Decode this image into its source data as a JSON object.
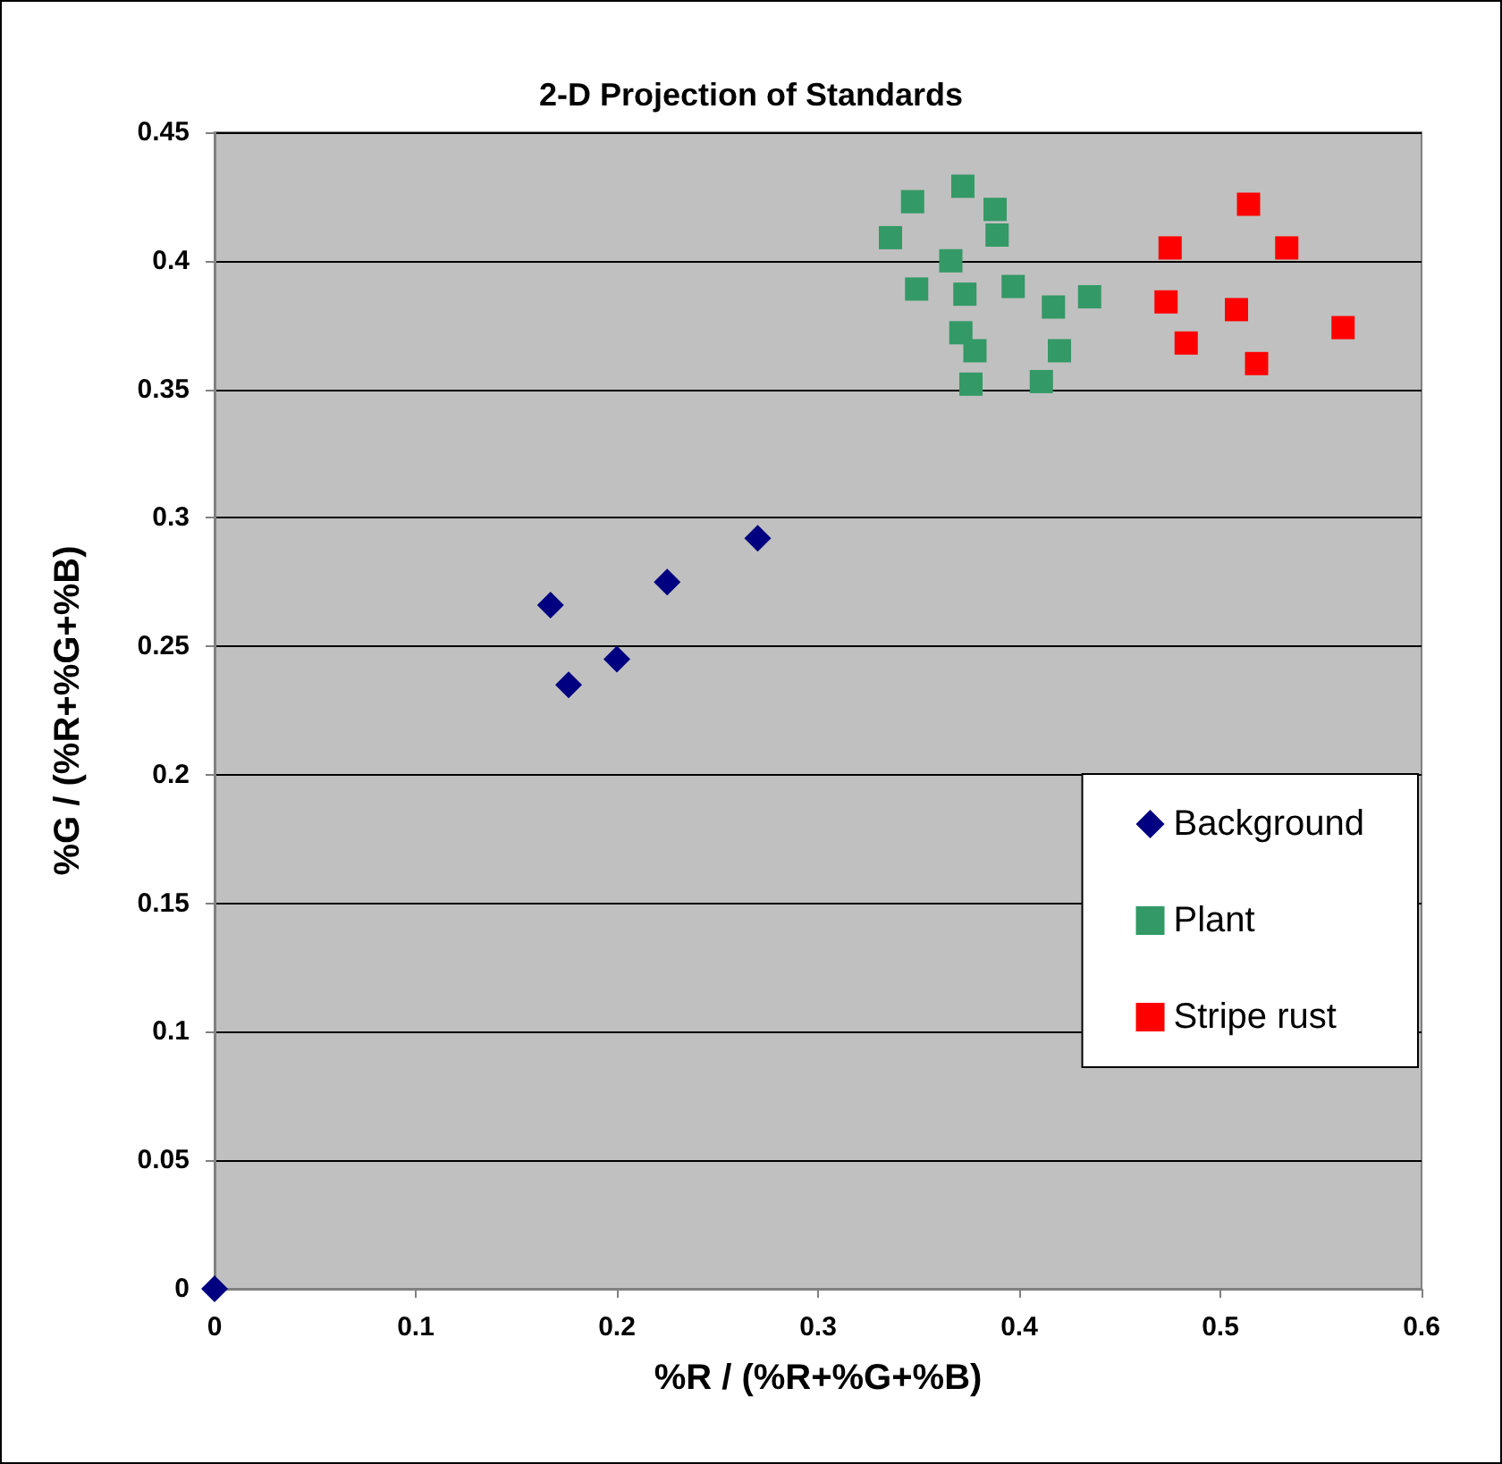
{
  "chart_data": {
    "type": "scatter",
    "title": "2-D Projection of Standards",
    "xlabel": "%R / (%R+%G+%B)",
    "ylabel": "%G / (%R+%G+%B)",
    "xlim": [
      0,
      0.6
    ],
    "xticks": [
      0,
      0.1,
      0.2,
      0.3,
      0.4,
      0.5,
      0.6
    ],
    "ylim": [
      0,
      0.45
    ],
    "yticks": [
      0,
      0.05,
      0.1,
      0.15,
      0.2,
      0.25,
      0.3,
      0.35,
      0.4,
      0.45
    ],
    "grid": "y",
    "legend": "right",
    "series": [
      {
        "name": "Background",
        "color": "#000080",
        "marker": "diamond",
        "x": [
          0,
          0.167,
          0.176,
          0.2,
          0.225,
          0.27
        ],
        "values": [
          0,
          0.266,
          0.235,
          0.245,
          0.275,
          0.292
        ]
      },
      {
        "name": "Plant",
        "color": "#339966",
        "marker": "square",
        "x": [
          0.336,
          0.347,
          0.349,
          0.366,
          0.372,
          0.371,
          0.373,
          0.376,
          0.378,
          0.388,
          0.389,
          0.397,
          0.411,
          0.417,
          0.42,
          0.435
        ],
        "values": [
          0.409,
          0.423,
          0.389,
          0.4,
          0.429,
          0.372,
          0.387,
          0.352,
          0.365,
          0.42,
          0.41,
          0.39,
          0.353,
          0.382,
          0.365,
          0.386
        ]
      },
      {
        "name": "Stripe rust",
        "color": "#ff0000",
        "marker": "square",
        "x": [
          0.473,
          0.475,
          0.483,
          0.514,
          0.508,
          0.518,
          0.533,
          0.561
        ],
        "values": [
          0.384,
          0.405,
          0.368,
          0.422,
          0.381,
          0.36,
          0.405,
          0.374
        ]
      }
    ]
  }
}
